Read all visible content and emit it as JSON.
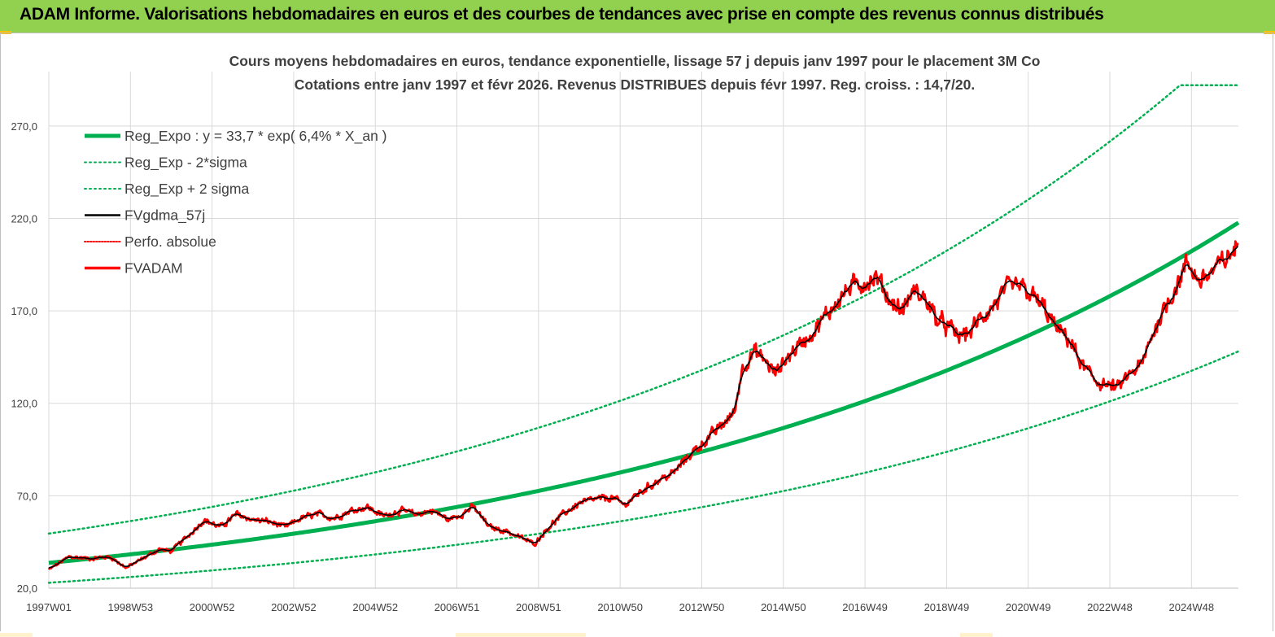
{
  "header": {
    "title": "ADAM Informe. Valorisations hebdomadaires en euros et des courbes de tendances avec prise en compte des revenus connus distribués"
  },
  "colors": {
    "banner": "#92d050",
    "trend": "#00b050",
    "fv": "#000000",
    "fvadam": "#ff0000",
    "perfo": "#ff0000",
    "grid": "#d9d9d9"
  },
  "chart_data": {
    "type": "line",
    "title": "Cours moyens hebdomadaires en euros, tendance exponentielle, lissage 57 j depuis janv 1997  pour le placement 3M Co",
    "subtitle": "Cotations entre janv 1997 et févr 2026. Revenus DISTRIBUES depuis févr 1997. Reg. croiss. : 14,7/20.",
    "xlabel": "",
    "ylabel": "",
    "xlim": [
      1997.0,
      2026.15
    ],
    "ylim": [
      20,
      295
    ],
    "y_ticks": [
      20,
      70,
      120,
      170,
      220,
      270
    ],
    "y_tick_labels": [
      "20,0",
      "70,0",
      "120,0",
      "170,0",
      "220,0",
      "270,0"
    ],
    "x_ticks": [
      1997.0,
      1999.0,
      2001.0,
      2003.0,
      2005.0,
      2007.0,
      2009.0,
      2011.0,
      2013.0,
      2015.0,
      2017.0,
      2019.0,
      2021.0,
      2023.0,
      2025.0
    ],
    "x_tick_labels": [
      "1997W01",
      "1998W53",
      "2000W52",
      "2002W52",
      "2004W52",
      "2006W51",
      "2008W51",
      "2010W50",
      "2012W50",
      "2014W50",
      "2016W49",
      "2018W49",
      "2020W49",
      "2022W48",
      "2024W48"
    ],
    "regression": {
      "a": 33.7,
      "rate": 0.064,
      "sigma_factor": 1.47
    },
    "legend": [
      {
        "label": "Reg_Expo : y = 33,7 * exp( 6,4% *  X_an )",
        "style": "thick",
        "color": "#00b050"
      },
      {
        "label": "Reg_Exp - 2*sigma",
        "style": "dotted",
        "color": "#00b050"
      },
      {
        "label": "Reg_Exp + 2 sigma",
        "style": "dotted",
        "color": "#00b050"
      },
      {
        "label": "FVgdma_57j",
        "style": "solid",
        "color": "#000000"
      },
      {
        "label": "Perfo. absolue",
        "style": "dotted",
        "color": "#ff0000"
      },
      {
        "label": "FVADAM",
        "style": "thick",
        "color": "#ff0000"
      }
    ],
    "series": [
      {
        "name": "Reg_Expo",
        "kind": "trend",
        "formula": "33.7*exp(0.064*t)"
      },
      {
        "name": "Reg_Exp - 2*sigma",
        "kind": "trend",
        "formula": "(33.7/1.47)*exp(0.064*t)"
      },
      {
        "name": "Reg_Exp + 2 sigma",
        "kind": "trend",
        "formula": "(33.7*1.47)*exp(0.064*t)",
        "cap": 292
      },
      {
        "name": "FVADAM",
        "x": [
          1997.0,
          1997.5,
          1998.0,
          1998.5,
          1998.9,
          1999.3,
          1999.7,
          2000.0,
          2000.4,
          2000.8,
          2001.2,
          2001.6,
          2002.0,
          2002.4,
          2002.8,
          2003.2,
          2003.6,
          2004.0,
          2004.4,
          2004.8,
          2005.2,
          2005.6,
          2006.0,
          2006.4,
          2006.8,
          2007.1,
          2007.4,
          2007.8,
          2008.2,
          2008.6,
          2008.9,
          2009.2,
          2009.6,
          2010.0,
          2010.4,
          2010.8,
          2011.1,
          2011.5,
          2011.9,
          2012.3,
          2012.7,
          2013.0,
          2013.4,
          2013.8,
          2014.0,
          2014.3,
          2014.6,
          2014.8,
          2015.1,
          2015.4,
          2015.7,
          2016.0,
          2016.3,
          2016.6,
          2016.9,
          2017.3,
          2017.6,
          2017.9,
          2018.2,
          2018.5,
          2018.8,
          2019.0,
          2019.3,
          2019.6,
          2019.8,
          2020.2,
          2020.5,
          2020.8,
          2021.1,
          2021.4,
          2021.7,
          2022.0,
          2022.3,
          2022.6,
          2022.9,
          2023.2,
          2023.5,
          2023.8,
          2024.0,
          2024.3,
          2024.6,
          2024.9,
          2025.2,
          2025.5,
          2025.8,
          2026.15
        ],
        "y": [
          30,
          37,
          36,
          37,
          31,
          36,
          41,
          40,
          48,
          57,
          53,
          60,
          57,
          56,
          53,
          58,
          60,
          58,
          62,
          64,
          59,
          62,
          60,
          62,
          57,
          60,
          64,
          53,
          51,
          47,
          44,
          52,
          60,
          66,
          68,
          69,
          65,
          72,
          78,
          82,
          92,
          98,
          106,
          115,
          140,
          148,
          142,
          136,
          145,
          152,
          158,
          166,
          175,
          182,
          185,
          188,
          176,
          170,
          181,
          176,
          164,
          162,
          156,
          159,
          165,
          174,
          182,
          183,
          178,
          171,
          160,
          155,
          141,
          133,
          130,
          128,
          136,
          141,
          155,
          170,
          182,
          196,
          186,
          191,
          197,
          205
        ],
        "noise": true
      },
      {
        "name": "FVgdma_57j",
        "kind": "smoothed",
        "source": "FVADAM"
      }
    ]
  }
}
